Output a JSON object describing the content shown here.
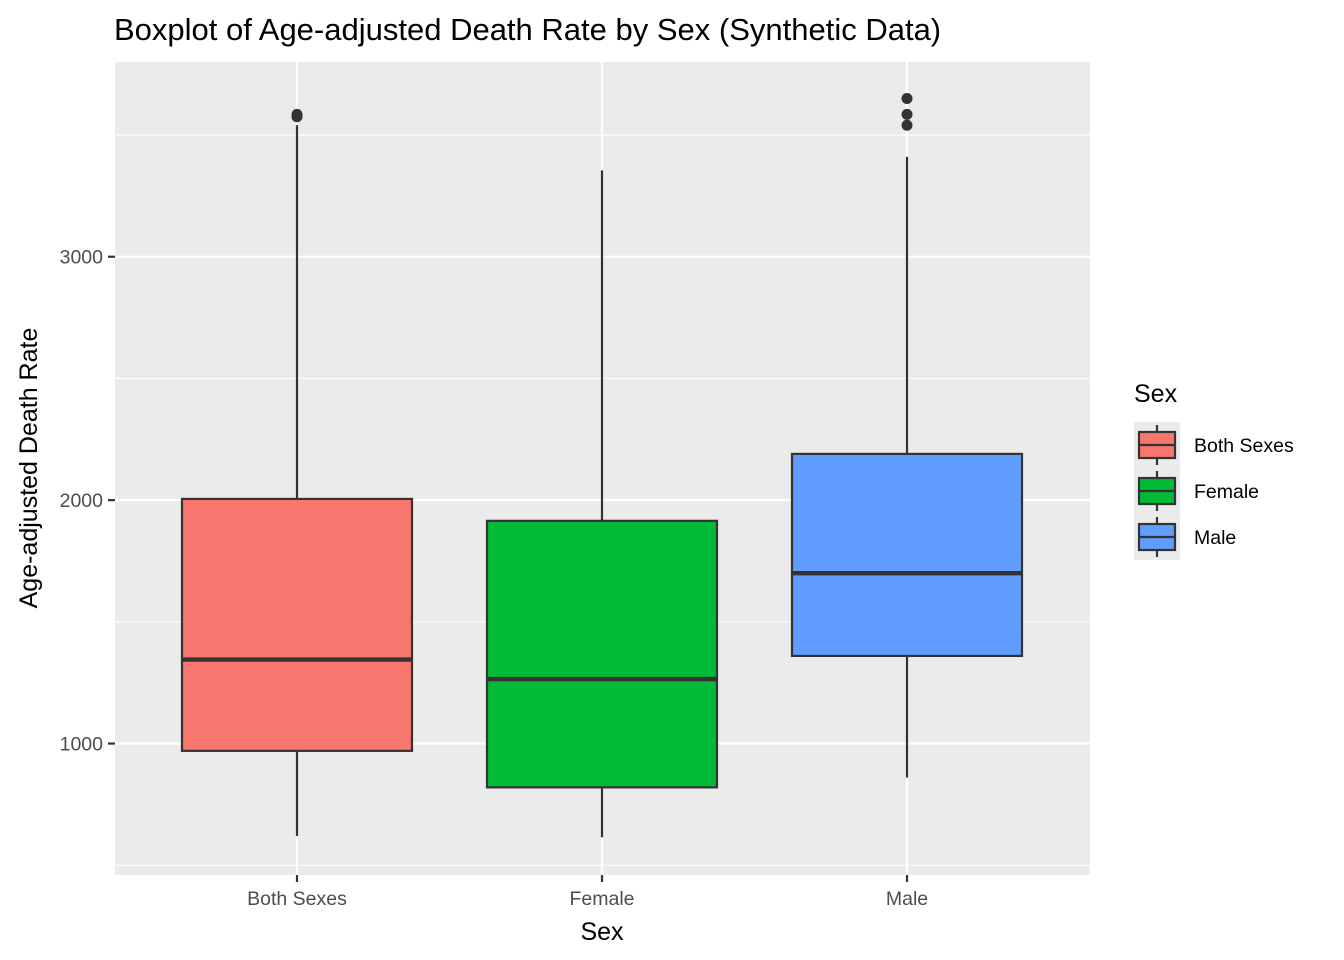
{
  "chart_data": {
    "type": "boxplot",
    "title": "Boxplot of Age-adjusted Death Rate by Sex (Synthetic Data)",
    "xlabel": "Sex",
    "ylabel": "Age-adjusted Death Rate",
    "categories": [
      "Both Sexes",
      "Female",
      "Male"
    ],
    "y_ticks": [
      1000,
      2000,
      3000
    ],
    "y_tick_labels": [
      "1000",
      "2000",
      "3000"
    ],
    "ylim": [
      460,
      3800
    ],
    "grid": true,
    "legend": {
      "title": "Sex",
      "position": "right",
      "entries": [
        "Both Sexes",
        "Female",
        "Male"
      ]
    },
    "boxes": [
      {
        "name": "Both Sexes",
        "color": "#F8766D",
        "whisker_low": 620,
        "q1": 970,
        "median": 1345,
        "q3": 2005,
        "whisker_high": 3540,
        "outliers": [
          3575,
          3585
        ]
      },
      {
        "name": "Female",
        "color": "#00BA38",
        "whisker_low": 615,
        "q1": 820,
        "median": 1265,
        "q3": 1915,
        "whisker_high": 3355,
        "outliers": []
      },
      {
        "name": "Male",
        "color": "#619CFF",
        "whisker_low": 860,
        "q1": 1360,
        "median": 1700,
        "q3": 2190,
        "whisker_high": 3410,
        "outliers": [
          3540,
          3585,
          3650
        ]
      }
    ]
  }
}
